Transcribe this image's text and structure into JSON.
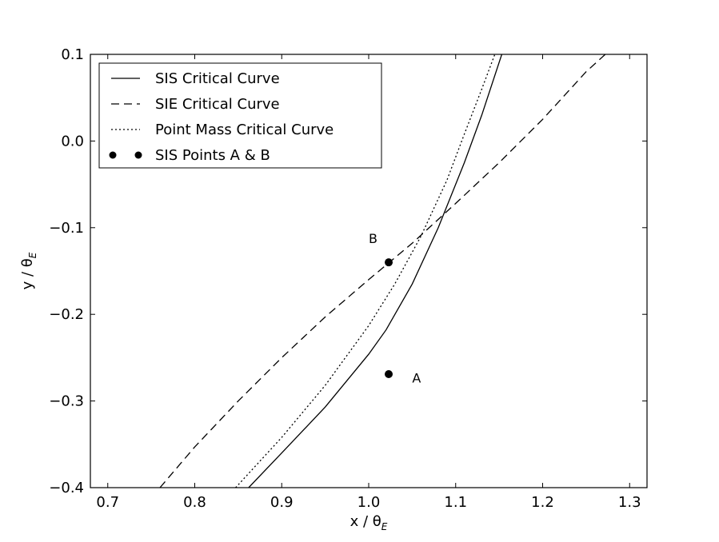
{
  "chart_data": {
    "type": "line",
    "xlabel": "x / θ",
    "xlabel_sub": "E",
    "ylabel": "y / θ",
    "ylabel_sub": "E",
    "xlim": [
      0.68,
      1.32
    ],
    "ylim": [
      -0.4,
      0.1
    ],
    "x_ticks": [
      0.7,
      0.8,
      0.9,
      1.0,
      1.1,
      1.2,
      1.3
    ],
    "x_tick_labels": [
      "0.7",
      "0.8",
      "0.9",
      "1.0",
      "1.1",
      "1.2",
      "1.3"
    ],
    "y_ticks": [
      0.1,
      0.0,
      -0.1,
      -0.2,
      -0.3,
      -0.4
    ],
    "y_tick_labels": [
      "0.1",
      "0.0",
      "−0.1",
      "−0.2",
      "−0.3",
      "−0.4"
    ],
    "grid": false,
    "legend_position": "top-left",
    "series": [
      {
        "name": "SIS Critical Curve",
        "style": "solid",
        "color": "#000000",
        "points": [
          [
            0.862,
            -0.4
          ],
          [
            0.9,
            -0.36
          ],
          [
            0.95,
            -0.307
          ],
          [
            1.0,
            -0.246
          ],
          [
            1.02,
            -0.218
          ],
          [
            1.05,
            -0.165
          ],
          [
            1.08,
            -0.1
          ],
          [
            1.11,
            -0.025
          ],
          [
            1.13,
            0.03
          ],
          [
            1.153,
            0.1
          ]
        ]
      },
      {
        "name": "SIE Critical Curve",
        "style": "dashed",
        "color": "#000000",
        "points": [
          [
            0.76,
            -0.4
          ],
          [
            0.8,
            -0.353
          ],
          [
            0.85,
            -0.3
          ],
          [
            0.9,
            -0.25
          ],
          [
            0.95,
            -0.203
          ],
          [
            1.0,
            -0.16
          ],
          [
            1.05,
            -0.118
          ],
          [
            1.1,
            -0.072
          ],
          [
            1.15,
            -0.025
          ],
          [
            1.2,
            0.025
          ],
          [
            1.25,
            0.08
          ],
          [
            1.272,
            0.1
          ]
        ]
      },
      {
        "name": "Point Mass Critical Curve",
        "style": "dotted",
        "color": "#000000",
        "points": [
          [
            0.847,
            -0.4
          ],
          [
            0.9,
            -0.342
          ],
          [
            0.95,
            -0.282
          ],
          [
            1.0,
            -0.213
          ],
          [
            1.03,
            -0.165
          ],
          [
            1.06,
            -0.11
          ],
          [
            1.09,
            -0.045
          ],
          [
            1.11,
            0.008
          ],
          [
            1.13,
            0.06
          ],
          [
            1.145,
            0.1
          ]
        ]
      },
      {
        "name": "SIS Points A & B",
        "style": "markers",
        "color": "#000000",
        "points": [
          [
            1.023,
            -0.269
          ],
          [
            1.023,
            -0.14
          ]
        ]
      }
    ],
    "annotations": [
      {
        "text": "A",
        "x": 1.05,
        "y": -0.273
      },
      {
        "text": "B",
        "x": 1.0,
        "y": -0.112
      }
    ]
  }
}
